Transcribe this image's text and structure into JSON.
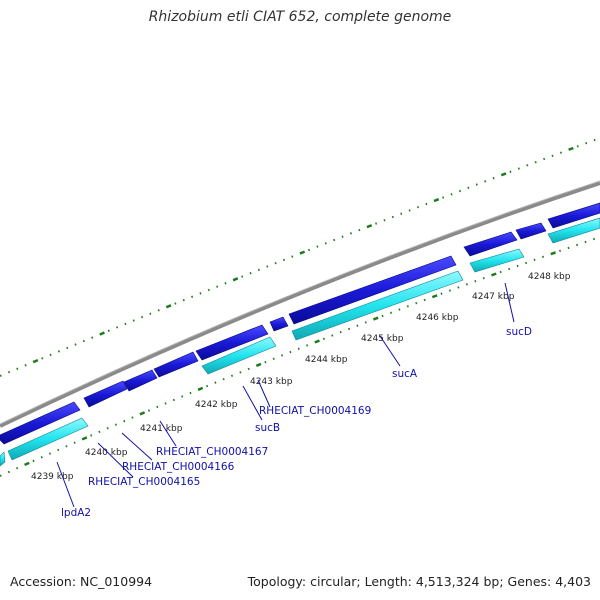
{
  "title": "Rhizobium etli CIAT 652, complete genome",
  "footer": {
    "accession": "Accession: NC_010994",
    "stats": "Topology: circular; Length: 4,513,324 bp; Genes: 4,403"
  },
  "colors": {
    "backbone": "#888888",
    "forward_gene": "#1a1ad8",
    "reverse_gene": "#22e4ee",
    "ticks": "#1e7a1e",
    "gene_label": "#1010a8"
  },
  "kbp_labels": [
    "4239 kbp",
    "4240 kbp",
    "4241 kbp",
    "4242 kbp",
    "4243 kbp",
    "4244 kbp",
    "4245 kbp",
    "4246 kbp",
    "4247 kbp",
    "4248 kbp"
  ],
  "gene_labels": [
    "lpdA2",
    "RHECIAT_CH0004165",
    "RHECIAT_CH0004166",
    "RHECIAT_CH0004167",
    "sucB",
    "RHECIAT_CH0004169",
    "sucA",
    "sucD"
  ]
}
